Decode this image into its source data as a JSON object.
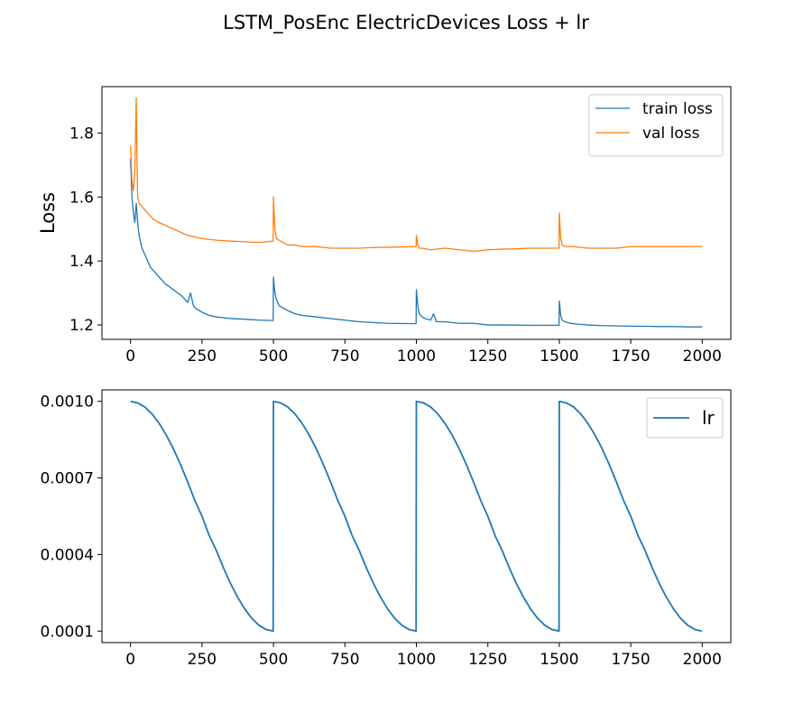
{
  "figure": {
    "title": "LSTM_PosEnc ElectricDevices Loss + lr"
  },
  "colors": {
    "train": "#1f77b4",
    "val": "#ff7f0e",
    "lr": "#1f77b4"
  },
  "chart_data": [
    {
      "type": "line",
      "title": "",
      "xlabel": "",
      "ylabel": "Loss",
      "xlim": [
        -100,
        2100
      ],
      "ylim": [
        1.155,
        1.945
      ],
      "x_ticks": [
        0,
        250,
        500,
        750,
        1000,
        1250,
        1500,
        1750,
        2000
      ],
      "x_tick_labels": [
        "0",
        "250",
        "500",
        "750",
        "1000",
        "1250",
        "1500",
        "1750",
        "2000"
      ],
      "y_ticks": [
        1.2,
        1.4,
        1.6,
        1.8
      ],
      "y_tick_labels": [
        "1.2",
        "1.4",
        "1.6",
        "1.8"
      ],
      "grid": false,
      "legend": "top-right",
      "series": [
        {
          "name": "train loss",
          "color": "#1f77b4",
          "x": [
            0,
            5,
            10,
            15,
            20,
            25,
            30,
            40,
            50,
            60,
            70,
            80,
            100,
            120,
            150,
            180,
            200,
            210,
            220,
            230,
            250,
            275,
            300,
            350,
            400,
            450,
            499,
            500,
            505,
            510,
            520,
            530,
            540,
            550,
            575,
            600,
            650,
            700,
            750,
            800,
            900,
            999,
            1000,
            1005,
            1010,
            1020,
            1030,
            1050,
            1060,
            1070,
            1100,
            1150,
            1200,
            1250,
            1300,
            1400,
            1499,
            1500,
            1505,
            1510,
            1520,
            1540,
            1560,
            1600,
            1650,
            1700,
            1750,
            1800,
            1850,
            1900,
            1950,
            2000
          ],
          "values": [
            1.72,
            1.6,
            1.55,
            1.52,
            1.58,
            1.52,
            1.48,
            1.44,
            1.42,
            1.4,
            1.38,
            1.37,
            1.35,
            1.33,
            1.31,
            1.29,
            1.27,
            1.3,
            1.26,
            1.25,
            1.24,
            1.23,
            1.225,
            1.22,
            1.218,
            1.215,
            1.214,
            1.35,
            1.3,
            1.28,
            1.26,
            1.255,
            1.25,
            1.245,
            1.235,
            1.23,
            1.225,
            1.22,
            1.215,
            1.21,
            1.205,
            1.204,
            1.31,
            1.26,
            1.235,
            1.225,
            1.22,
            1.215,
            1.235,
            1.21,
            1.21,
            1.205,
            1.205,
            1.2,
            1.2,
            1.199,
            1.199,
            1.275,
            1.23,
            1.215,
            1.21,
            1.205,
            1.203,
            1.2,
            1.198,
            1.197,
            1.196,
            1.196,
            1.195,
            1.195,
            1.194,
            1.194
          ]
        },
        {
          "name": "val loss",
          "color": "#ff7f0e",
          "x": [
            0,
            5,
            10,
            15,
            20,
            22,
            25,
            30,
            40,
            50,
            60,
            80,
            100,
            150,
            200,
            250,
            300,
            350,
            400,
            450,
            499,
            500,
            505,
            510,
            520,
            530,
            540,
            550,
            575,
            600,
            650,
            700,
            750,
            800,
            850,
            900,
            950,
            999,
            1000,
            1005,
            1010,
            1020,
            1050,
            1100,
            1150,
            1200,
            1250,
            1300,
            1350,
            1400,
            1450,
            1499,
            1500,
            1505,
            1510,
            1520,
            1550,
            1600,
            1650,
            1700,
            1750,
            1800,
            1850,
            1900,
            1950,
            2000
          ],
          "values": [
            1.76,
            1.65,
            1.62,
            1.68,
            1.91,
            1.75,
            1.6,
            1.58,
            1.57,
            1.56,
            1.55,
            1.53,
            1.52,
            1.5,
            1.48,
            1.47,
            1.465,
            1.462,
            1.46,
            1.458,
            1.462,
            1.6,
            1.5,
            1.47,
            1.465,
            1.46,
            1.455,
            1.45,
            1.45,
            1.445,
            1.445,
            1.44,
            1.44,
            1.44,
            1.442,
            1.443,
            1.444,
            1.445,
            1.48,
            1.45,
            1.44,
            1.44,
            1.435,
            1.44,
            1.435,
            1.43,
            1.435,
            1.437,
            1.438,
            1.44,
            1.44,
            1.44,
            1.55,
            1.47,
            1.45,
            1.445,
            1.445,
            1.44,
            1.44,
            1.44,
            1.445,
            1.445,
            1.445,
            1.445,
            1.445,
            1.445
          ]
        }
      ]
    },
    {
      "type": "line",
      "title": "",
      "xlabel": "",
      "ylabel": "",
      "xlim": [
        -100,
        2100
      ],
      "ylim": [
        5.5e-05,
        0.001045
      ],
      "x_ticks": [
        0,
        250,
        500,
        750,
        1000,
        1250,
        1500,
        1750,
        2000
      ],
      "x_tick_labels": [
        "0",
        "250",
        "500",
        "750",
        "1000",
        "1250",
        "1500",
        "1750",
        "2000"
      ],
      "y_ticks": [
        0.0001,
        0.0004,
        0.0007,
        0.001
      ],
      "y_tick_labels": [
        "0.0001",
        "0.0004",
        "0.0007",
        "0.0010"
      ],
      "grid": false,
      "legend": "top-right",
      "series": [
        {
          "name": "lr",
          "color": "#1f77b4",
          "x": [
            0,
            25,
            50,
            75,
            100,
            125,
            150,
            175,
            200,
            225,
            250,
            275,
            300,
            325,
            350,
            375,
            400,
            425,
            450,
            475,
            499,
            500,
            525,
            550,
            575,
            600,
            625,
            650,
            675,
            700,
            725,
            750,
            775,
            800,
            825,
            850,
            875,
            900,
            925,
            950,
            975,
            999,
            1000,
            1025,
            1050,
            1075,
            1100,
            1125,
            1150,
            1175,
            1200,
            1225,
            1250,
            1275,
            1300,
            1325,
            1350,
            1375,
            1400,
            1425,
            1450,
            1475,
            1499,
            1500,
            1525,
            1550,
            1575,
            1600,
            1625,
            1650,
            1675,
            1700,
            1725,
            1750,
            1775,
            1800,
            1825,
            1850,
            1875,
            1900,
            1925,
            1950,
            1975,
            1999
          ],
          "values": [
            0.001,
            0.000994,
            0.000978,
            0.000951,
            0.000914,
            0.000868,
            0.000814,
            0.000752,
            0.000684,
            0.000612,
            0.00055,
            0.000475,
            0.000416,
            0.000348,
            0.000286,
            0.000232,
            0.000186,
            0.000149,
            0.000122,
            0.000106,
            0.0001,
            0.001,
            0.000994,
            0.000978,
            0.000951,
            0.000914,
            0.000868,
            0.000814,
            0.000752,
            0.000684,
            0.000612,
            0.00055,
            0.000475,
            0.000416,
            0.000348,
            0.000286,
            0.000232,
            0.000186,
            0.000149,
            0.000122,
            0.000106,
            0.0001,
            0.001,
            0.000994,
            0.000978,
            0.000951,
            0.000914,
            0.000868,
            0.000814,
            0.000752,
            0.000684,
            0.000612,
            0.00055,
            0.000475,
            0.000416,
            0.000348,
            0.000286,
            0.000232,
            0.000186,
            0.000149,
            0.000122,
            0.000106,
            0.0001,
            0.001,
            0.000994,
            0.000978,
            0.000951,
            0.000914,
            0.000868,
            0.000814,
            0.000752,
            0.000684,
            0.000612,
            0.00055,
            0.000475,
            0.000416,
            0.000348,
            0.000286,
            0.000232,
            0.000186,
            0.000149,
            0.000122,
            0.000106,
            0.0001
          ]
        }
      ]
    }
  ]
}
